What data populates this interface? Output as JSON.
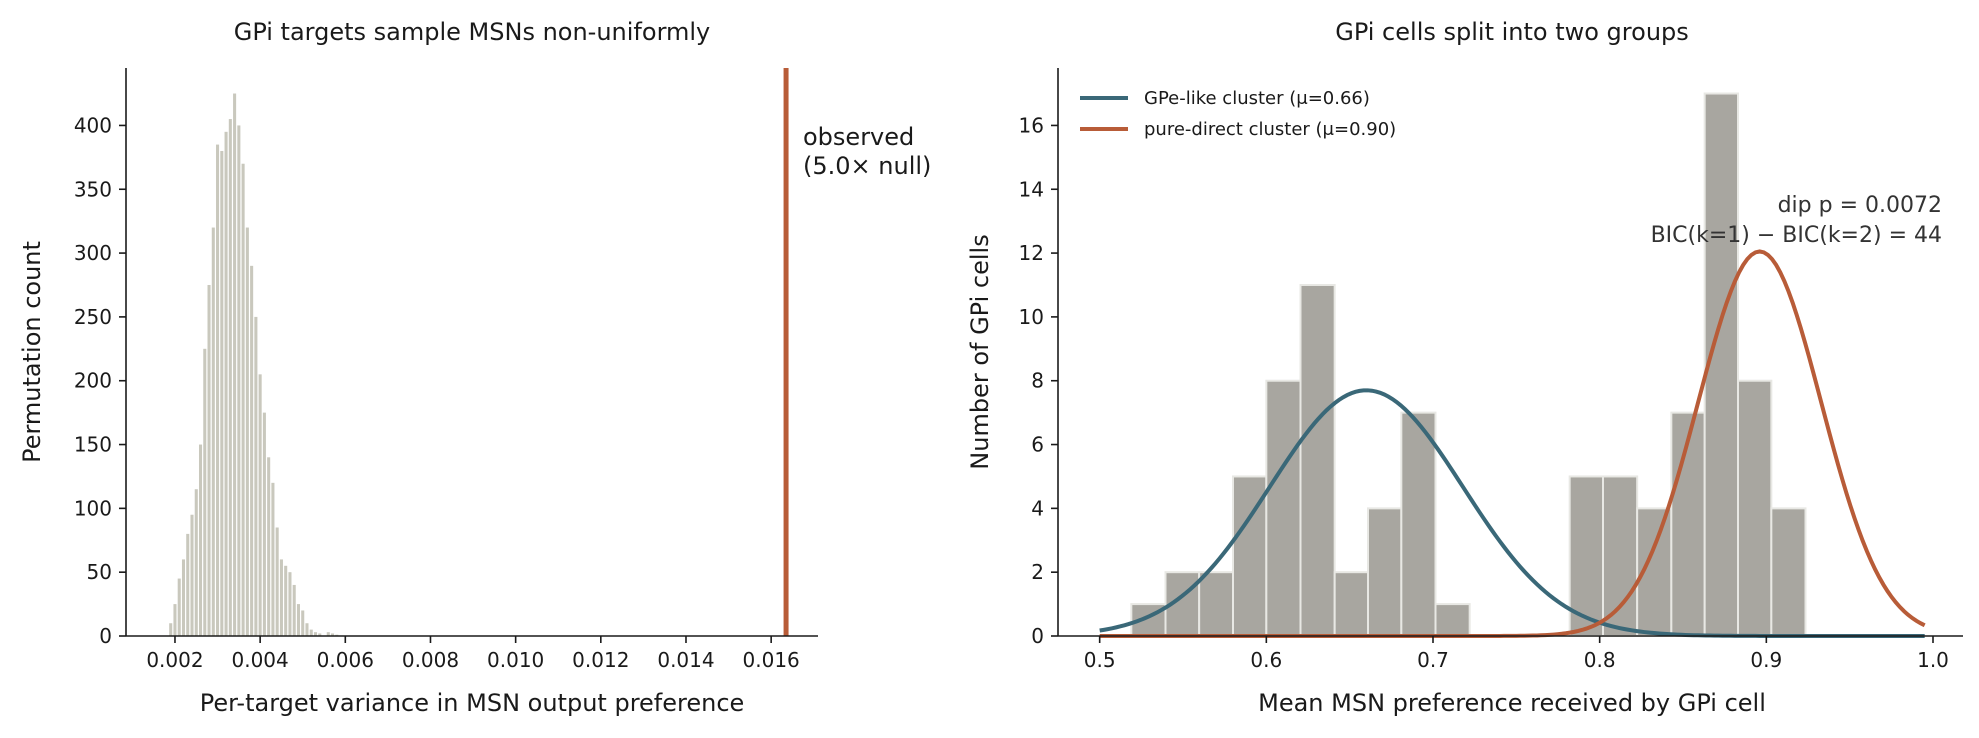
{
  "colors": {
    "null_bar": "#c9c8bd",
    "observed": "#b85c38",
    "hist_bar": "#a8a6a0",
    "hist_edge": "#e8e8e4",
    "gpe_curve": "#3a6878",
    "direct_curve": "#b85c38",
    "text": "#1a1a1a"
  },
  "chart_data": [
    {
      "type": "bar",
      "title": "GPi targets sample MSNs non-uniformly",
      "xlabel": "Per-target variance in MSN output preference",
      "ylabel": "Permutation count",
      "xlim": [
        0.00085,
        0.0171
      ],
      "ylim": [
        0,
        445
      ],
      "xticks": [
        0.002,
        0.004,
        0.006,
        0.008,
        0.01,
        0.012,
        0.014,
        0.016
      ],
      "xtick_labels": [
        "0.002",
        "0.004",
        "0.006",
        "0.008",
        "0.010",
        "0.012",
        "0.014",
        "0.016"
      ],
      "yticks": [
        0,
        50,
        100,
        150,
        200,
        250,
        300,
        350,
        400
      ],
      "ytick_labels": [
        "0",
        "50",
        "100",
        "150",
        "200",
        "250",
        "300",
        "350",
        "400"
      ],
      "bin_width": 0.0001,
      "bin_start": 0.00185,
      "values": [
        10,
        25,
        45,
        60,
        80,
        95,
        115,
        150,
        225,
        275,
        320,
        385,
        380,
        395,
        405,
        425,
        400,
        370,
        320,
        290,
        250,
        205,
        175,
        140,
        120,
        85,
        60,
        55,
        50,
        40,
        25,
        20,
        10,
        5,
        3,
        2,
        0,
        3,
        2,
        1
      ],
      "observed": {
        "x": 0.01635,
        "label_line1": "observed",
        "label_line2": "(5.0× null)"
      }
    },
    {
      "type": "bar",
      "title": "GPi cells split into two groups",
      "xlabel": "Mean MSN preference received by GPi cell",
      "ylabel": "Number of GPi cells",
      "xlim": [
        0.475,
        1.018
      ],
      "ylim": [
        0,
        17.8
      ],
      "xticks": [
        0.5,
        0.6,
        0.7,
        0.8,
        0.9,
        1.0
      ],
      "xtick_labels": [
        "0.5",
        "0.6",
        "0.7",
        "0.8",
        "0.9",
        "1.0"
      ],
      "yticks": [
        0,
        2,
        4,
        6,
        8,
        10,
        12,
        14,
        16
      ],
      "ytick_labels": [
        "0",
        "2",
        "4",
        "6",
        "8",
        "10",
        "12",
        "14",
        "16"
      ],
      "bin_edges": [
        0.519,
        0.5395,
        0.5597,
        0.58,
        0.6,
        0.6205,
        0.641,
        0.661,
        0.681,
        0.7015,
        0.722,
        0.742,
        0.762,
        0.782,
        0.802,
        0.8225,
        0.843,
        0.863,
        0.883,
        0.903,
        0.9235,
        0.944,
        0.964
      ],
      "values": [
        1,
        2,
        2,
        5,
        8,
        11,
        2,
        4,
        7,
        1,
        0,
        0,
        0,
        5,
        5,
        4,
        7,
        17,
        8,
        4,
        0,
        0
      ],
      "series": [
        {
          "name": "GPe-like cluster (μ=0.66)",
          "mu": 0.66,
          "sigma": 0.058,
          "peak": 7.7,
          "x_range": [
            0.5,
            0.995
          ]
        },
        {
          "name": "pure-direct cluster (μ=0.90)",
          "mu": 0.896,
          "sigma": 0.037,
          "peak": 12.05,
          "x_range": [
            0.5,
            0.995
          ]
        }
      ],
      "annotation_line1": "dip p = 0.0072",
      "annotation_line2": "BIC(k=1) − BIC(k=2) = 44",
      "legend_position": "top-left"
    }
  ]
}
